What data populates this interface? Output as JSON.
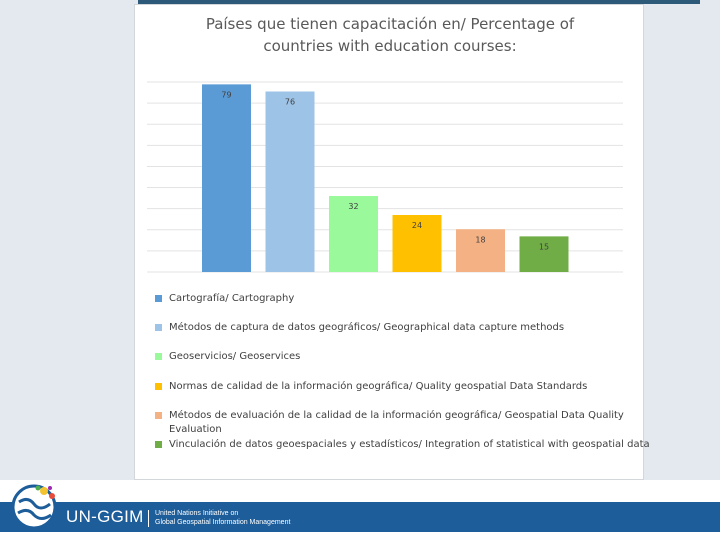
{
  "chart_data": {
    "type": "bar",
    "title_line1": "Países que tienen capacitación en/ Percentage of",
    "title_line2": "countries with education courses:",
    "ylim": [
      0,
      80
    ],
    "grid": true,
    "legend_position": "bottom",
    "series": [
      {
        "name": "Cartografía/ Cartography",
        "value": 79,
        "color": "#5b9bd5"
      },
      {
        "name": "Métodos de captura de datos geográficos/ Geographical data capture methods",
        "value": 76,
        "color": "#9dc3e6"
      },
      {
        "name": "Geoservicios/ Geoservices",
        "value": 32,
        "color": "#99f99b"
      },
      {
        "name": "Normas de calidad de la información geográfica/ Quality geospatial Data Standards",
        "value": 24,
        "color": "#ffc000"
      },
      {
        "name": "Métodos de evaluación de la calidad de la información geográfica/ Geospatial Data Quality Evaluation",
        "value": 18,
        "color": "#f4b183"
      },
      {
        "name": "Vinculación de datos geoespaciales y estadísticos/ Integration of statistical with geospatial data",
        "value": 15,
        "color": "#70ad47"
      }
    ]
  },
  "footer": {
    "brand": "UN-GGIM",
    "sub_line1": "United Nations Initiative on",
    "sub_line2": "Global Geospatial Information Management",
    "bar_color": "#1c5d9a"
  }
}
